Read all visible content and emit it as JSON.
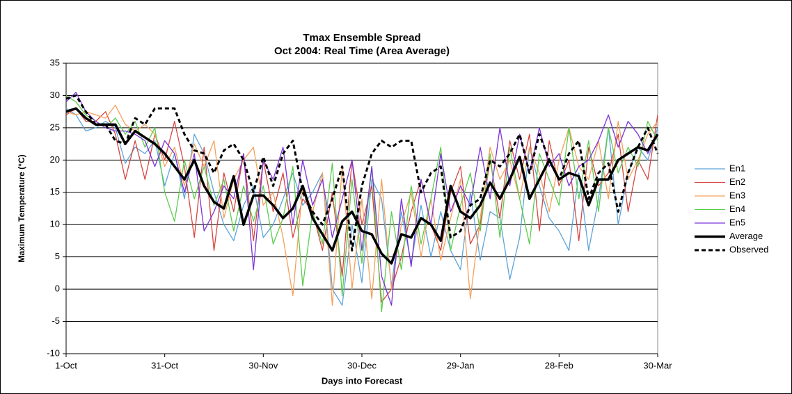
{
  "chart_data": {
    "type": "line",
    "title": "Tmax Ensemble Spread",
    "subtitle": "Oct 2004: Real Time (Area Average)",
    "x_label": "Days into Forecast",
    "y_label": "Maximum Temperature (°C)",
    "xlim": [
      0,
      180
    ],
    "xticks": [
      {
        "value": 0,
        "label": "1-Oct"
      },
      {
        "value": 30,
        "label": "31-Oct"
      },
      {
        "value": 60,
        "label": "30-Nov"
      },
      {
        "value": 90,
        "label": "30-Dec"
      },
      {
        "value": 120,
        "label": "29-Jan"
      },
      {
        "value": 150,
        "label": "28-Feb"
      },
      {
        "value": 180,
        "label": "30-Mar"
      }
    ],
    "ylim": [
      -10,
      35
    ],
    "yticks": [
      -10,
      -5,
      0,
      5,
      10,
      15,
      20,
      25,
      30,
      35
    ],
    "grid": true,
    "legend": "right",
    "x": [
      0,
      3,
      6,
      9,
      12,
      15,
      18,
      21,
      24,
      27,
      30,
      33,
      36,
      39,
      42,
      45,
      48,
      51,
      54,
      57,
      60,
      63,
      66,
      69,
      72,
      75,
      78,
      81,
      84,
      87,
      90,
      93,
      96,
      99,
      102,
      105,
      108,
      111,
      114,
      117,
      120,
      123,
      126,
      129,
      132,
      135,
      138,
      141,
      144,
      147,
      150,
      153,
      156,
      159,
      162,
      165,
      168,
      171,
      174,
      177,
      180
    ],
    "series": [
      {
        "name": "En1",
        "color": "#5ba3d9",
        "style": "solid",
        "values": [
          28,
          27,
          24.5,
          25,
          26,
          25,
          19.5,
          22,
          21,
          23,
          16,
          21,
          14,
          24,
          21,
          15,
          10,
          7.5,
          13,
          16,
          8,
          10,
          14,
          18,
          13,
          15,
          18,
          0,
          -2.5,
          10,
          1,
          17,
          14,
          0.5,
          12,
          4,
          13,
          5,
          12,
          6,
          3,
          15,
          4.5,
          12,
          11,
          1.5,
          8,
          22,
          16,
          11,
          9,
          6,
          18,
          6,
          14,
          25,
          10,
          18,
          22,
          20,
          25
        ]
      },
      {
        "name": "En2",
        "color": "#d64541",
        "style": "solid",
        "values": [
          27,
          28,
          26,
          26,
          27.5,
          24,
          17,
          23,
          17,
          24,
          20,
          26,
          19,
          8,
          22,
          6,
          18,
          12,
          21,
          7.5,
          20,
          12,
          18,
          8,
          14,
          12,
          6,
          15,
          2,
          20,
          10,
          16,
          -2,
          0,
          5,
          12,
          17,
          10,
          6,
          15,
          19,
          7,
          10,
          20,
          11,
          23,
          17,
          24,
          9,
          23,
          16,
          20,
          7.5,
          22,
          16,
          18,
          24,
          12,
          20,
          17,
          27
        ]
      },
      {
        "name": "En3",
        "color": "#f5a05a",
        "style": "solid",
        "values": [
          27.5,
          27,
          27.5,
          27,
          26.5,
          28.5,
          25.5,
          24.5,
          25.5,
          24,
          19,
          22,
          16,
          22.5,
          19,
          23,
          11,
          17,
          20,
          22,
          13,
          15,
          8,
          -1,
          16,
          12,
          18,
          -2.5,
          19,
          0,
          14,
          -1.5,
          17,
          0,
          10,
          15,
          5,
          14,
          4.5,
          11,
          17,
          -1.5,
          11,
          22,
          17,
          20,
          14,
          22,
          18,
          12,
          20,
          25,
          19,
          17,
          23,
          14,
          26,
          17,
          20,
          24,
          26
        ]
      },
      {
        "name": "En4",
        "color": "#5ccc4c",
        "style": "solid",
        "values": [
          30,
          29,
          27,
          26,
          25,
          26.5,
          24,
          26,
          22,
          25,
          15,
          10.5,
          20,
          14,
          19,
          13,
          17,
          9,
          16,
          10.5,
          16,
          7,
          11,
          19,
          0.5,
          12,
          7,
          19.5,
          -1,
          17,
          4,
          19,
          -3.5,
          12,
          3,
          16,
          7,
          14,
          22,
          6,
          13,
          18,
          9,
          21,
          8,
          22,
          14,
          7,
          21,
          17,
          13,
          25,
          14,
          23,
          12,
          25,
          18,
          22,
          19,
          26,
          23
        ]
      },
      {
        "name": "En5",
        "color": "#7a33d9",
        "style": "solid",
        "values": [
          29,
          30.5,
          27.5,
          26,
          25,
          24.5,
          24.5,
          24,
          23,
          19,
          23,
          21,
          15,
          21,
          9,
          12,
          16,
          14,
          21,
          3,
          20,
          17,
          22,
          10,
          20,
          13,
          17,
          8,
          14,
          20,
          6,
          19,
          2,
          -2.5,
          14,
          3.5,
          17,
          10,
          21,
          12,
          16,
          13,
          22,
          14,
          25,
          16,
          24,
          18,
          25,
          19,
          21,
          16,
          19,
          20,
          23,
          27,
          22,
          26,
          24,
          21,
          24
        ]
      },
      {
        "name": "Average",
        "color": "#000000",
        "style": "bold",
        "values": [
          27.5,
          28,
          26.5,
          25.5,
          25.5,
          25.5,
          22.5,
          24.5,
          23.5,
          22.5,
          21,
          19,
          17,
          20,
          16,
          13.5,
          12.5,
          17.5,
          10,
          14.5,
          14.5,
          13,
          11,
          12.5,
          16,
          11,
          8.5,
          6,
          10.5,
          12,
          9,
          8.5,
          5.5,
          4,
          8.5,
          8,
          11,
          10,
          7.5,
          16,
          12,
          11,
          13,
          16.5,
          14,
          17,
          20.5,
          14,
          17,
          20,
          17,
          18,
          17.5,
          13,
          17,
          17,
          20,
          21,
          22,
          21.5,
          24
        ]
      },
      {
        "name": "Observed",
        "color": "#000000",
        "style": "dashed",
        "values": [
          29.5,
          30,
          27.5,
          25.5,
          25.5,
          23,
          22.5,
          26.5,
          25.5,
          28,
          28,
          28,
          24,
          21.5,
          21,
          18,
          21.5,
          22.5,
          20,
          15,
          20.5,
          16,
          21,
          23,
          15,
          12,
          10,
          14,
          19,
          6,
          16,
          21,
          23,
          22,
          23,
          23,
          15,
          18,
          19,
          8,
          9,
          13,
          14,
          20,
          19,
          21,
          24,
          18,
          24,
          20,
          17,
          21,
          23,
          14,
          18,
          19.5,
          12,
          18,
          22,
          25,
          21
        ]
      }
    ]
  }
}
